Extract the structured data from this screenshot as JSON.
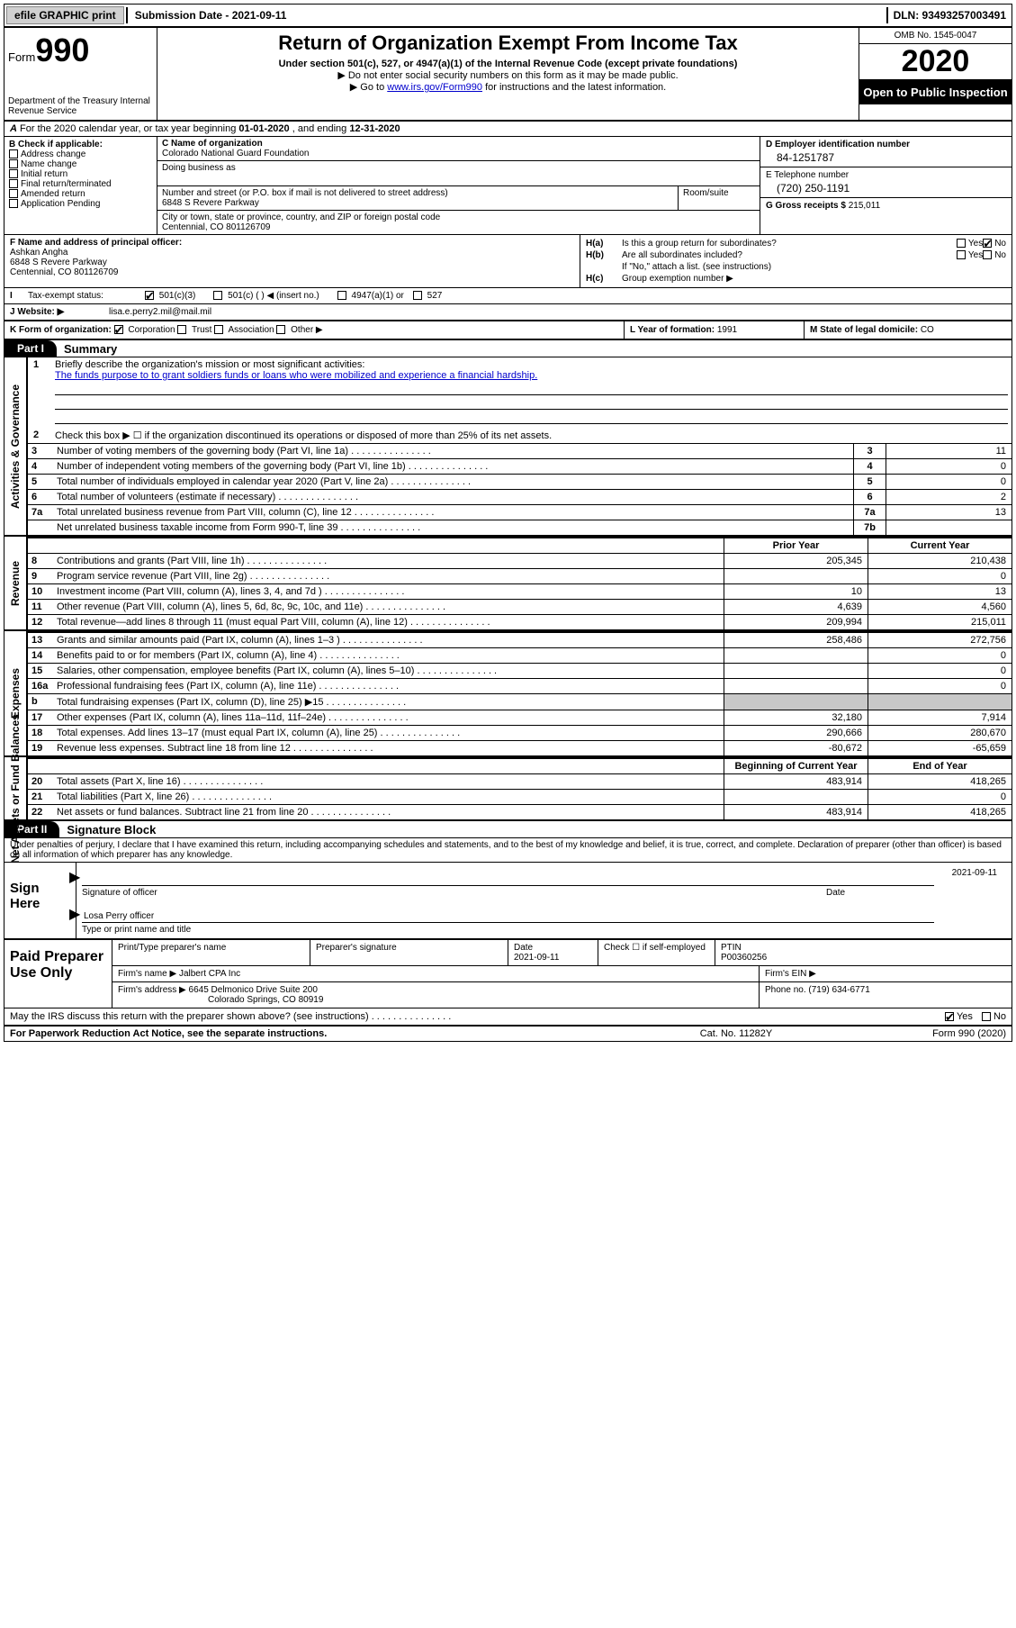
{
  "topbar": {
    "efile": "efile GRAPHIC print",
    "submission": "Submission Date - 2021-09-11",
    "dln": "DLN: 93493257003491"
  },
  "header": {
    "form_word": "Form",
    "form_num": "990",
    "dept": "Department of the Treasury\nInternal Revenue Service",
    "title": "Return of Organization Exempt From Income Tax",
    "sub1": "Under section 501(c), 527, or 4947(a)(1) of the Internal Revenue Code (except private foundations)",
    "sub2": "Do not enter social security numbers on this form as it may be made public.",
    "sub3_pre": "Go to ",
    "sub3_link": "www.irs.gov/Form990",
    "sub3_post": " for instructions and the latest information.",
    "omb": "OMB No. 1545-0047",
    "year": "2020",
    "inspect": "Open to Public Inspection"
  },
  "row_a": {
    "label": "A",
    "text_pre": "For the 2020 calendar year, or tax year beginning ",
    "begin": "01-01-2020",
    "mid": " , and ending ",
    "end": "12-31-2020"
  },
  "col_b": {
    "hd": "B Check if applicable:",
    "items": [
      "Address change",
      "Name change",
      "Initial return",
      "Final return/terminated",
      "Amended return",
      "Application Pending"
    ]
  },
  "col_c": {
    "name_lab": "C Name of organization",
    "name_val": "Colorado National Guard Foundation",
    "dba_lab": "Doing business as",
    "addr_lab": "Number and street (or P.O. box if mail is not delivered to street address)",
    "addr_val": "6848 S Revere Parkway",
    "room_lab": "Room/suite",
    "city_lab": "City or town, state or province, country, and ZIP or foreign postal code",
    "city_val": "Centennial, CO  801126709"
  },
  "col_d": {
    "ein_lab": "D Employer identification number",
    "ein_val": "84-1251787",
    "tel_lab": "E Telephone number",
    "tel_val": "(720) 250-1191",
    "gross_lab": "G Gross receipts $",
    "gross_val": "215,011"
  },
  "fh": {
    "f_lab": "F Name and address of principal officer:",
    "f_name": "Ashkan Angha",
    "f_addr1": "6848 S Revere Parkway",
    "f_addr2": "Centennial, CO  801126709",
    "ha": "Is this a group return for subordinates?",
    "hb": "Are all subordinates included?",
    "hnote": "If \"No,\" attach a list. (see instructions)",
    "hc": "Group exemption number ▶"
  },
  "row_i": {
    "lab": "Tax-exempt status:",
    "opt1": "501(c)(3)",
    "opt2": "501(c) (   ) ◀ (insert no.)",
    "opt3": "4947(a)(1) or",
    "opt4": "527"
  },
  "row_j": {
    "lab": "J   Website: ▶",
    "val": "lisa.e.perry2.mil@mail.mil"
  },
  "klm": {
    "k": "K Form of organization:",
    "k1": "Corporation",
    "k2": "Trust",
    "k3": "Association",
    "k4": "Other ▶",
    "l_lab": "L Year of formation:",
    "l_val": "1991",
    "m_lab": "M State of legal domicile:",
    "m_val": "CO"
  },
  "part1": {
    "tab": "Part I",
    "title": "Summary",
    "line1_num": "1",
    "line1_txt": "Briefly describe the organization's mission or most significant activities:",
    "mission": "The funds purpose to to grant soldiers funds or loans who were mobilized and experience a financial hardship.",
    "line2_num": "2",
    "line2_txt": "Check this box ▶ ☐ if the organization discontinued its operations or disposed of more than 25% of its net assets."
  },
  "gov_rows": [
    {
      "n": "3",
      "d": "Number of voting members of the governing body (Part VI, line 1a)",
      "b": "3",
      "v": "11"
    },
    {
      "n": "4",
      "d": "Number of independent voting members of the governing body (Part VI, line 1b)",
      "b": "4",
      "v": "0"
    },
    {
      "n": "5",
      "d": "Total number of individuals employed in calendar year 2020 (Part V, line 2a)",
      "b": "5",
      "v": "0"
    },
    {
      "n": "6",
      "d": "Total number of volunteers (estimate if necessary)",
      "b": "6",
      "v": "2"
    },
    {
      "n": "7a",
      "d": "Total unrelated business revenue from Part VIII, column (C), line 12",
      "b": "7a",
      "v": "13"
    },
    {
      "n": "",
      "d": "Net unrelated business taxable income from Form 990-T, line 39",
      "b": "7b",
      "v": ""
    }
  ],
  "rev_hdr": {
    "c1": "Prior Year",
    "c2": "Current Year"
  },
  "rev_rows": [
    {
      "n": "8",
      "d": "Contributions and grants (Part VIII, line 1h)",
      "c1": "205,345",
      "c2": "210,438"
    },
    {
      "n": "9",
      "d": "Program service revenue (Part VIII, line 2g)",
      "c1": "",
      "c2": "0"
    },
    {
      "n": "10",
      "d": "Investment income (Part VIII, column (A), lines 3, 4, and 7d )",
      "c1": "10",
      "c2": "13"
    },
    {
      "n": "11",
      "d": "Other revenue (Part VIII, column (A), lines 5, 6d, 8c, 9c, 10c, and 11e)",
      "c1": "4,639",
      "c2": "4,560"
    },
    {
      "n": "12",
      "d": "Total revenue—add lines 8 through 11 (must equal Part VIII, column (A), line 12)",
      "c1": "209,994",
      "c2": "215,011"
    }
  ],
  "exp_rows": [
    {
      "n": "13",
      "d": "Grants and similar amounts paid (Part IX, column (A), lines 1–3 )",
      "c1": "258,486",
      "c2": "272,756"
    },
    {
      "n": "14",
      "d": "Benefits paid to or for members (Part IX, column (A), line 4)",
      "c1": "",
      "c2": "0"
    },
    {
      "n": "15",
      "d": "Salaries, other compensation, employee benefits (Part IX, column (A), lines 5–10)",
      "c1": "",
      "c2": "0"
    },
    {
      "n": "16a",
      "d": "Professional fundraising fees (Part IX, column (A), line 11e)",
      "c1": "",
      "c2": "0"
    },
    {
      "n": "b",
      "d": "Total fundraising expenses (Part IX, column (D), line 25) ▶15",
      "c1": "shade",
      "c2": "shade"
    },
    {
      "n": "17",
      "d": "Other expenses (Part IX, column (A), lines 11a–11d, 11f–24e)",
      "c1": "32,180",
      "c2": "7,914"
    },
    {
      "n": "18",
      "d": "Total expenses. Add lines 13–17 (must equal Part IX, column (A), line 25)",
      "c1": "290,666",
      "c2": "280,670"
    },
    {
      "n": "19",
      "d": "Revenue less expenses. Subtract line 18 from line 12",
      "c1": "-80,672",
      "c2": "-65,659"
    }
  ],
  "net_hdr": {
    "c1": "Beginning of Current Year",
    "c2": "End of Year"
  },
  "net_rows": [
    {
      "n": "20",
      "d": "Total assets (Part X, line 16)",
      "c1": "483,914",
      "c2": "418,265"
    },
    {
      "n": "21",
      "d": "Total liabilities (Part X, line 26)",
      "c1": "",
      "c2": "0"
    },
    {
      "n": "22",
      "d": "Net assets or fund balances. Subtract line 21 from line 20",
      "c1": "483,914",
      "c2": "418,265"
    }
  ],
  "side_labels": {
    "gov": "Activities & Governance",
    "rev": "Revenue",
    "exp": "Expenses",
    "net": "Net Assets or Fund Balances"
  },
  "part2": {
    "tab": "Part II",
    "title": "Signature Block",
    "penalty": "Under penalties of perjury, I declare that I have examined this return, including accompanying schedules and statements, and to the best of my knowledge and belief, it is true, correct, and complete. Declaration of preparer (other than officer) is based on all information of which preparer has any knowledge."
  },
  "sign": {
    "left": "Sign Here",
    "sig_lab": "Signature of officer",
    "date_lab": "Date",
    "date_val": "2021-09-11",
    "name_val": "Losa Perry  officer",
    "name_lab": "Type or print name and title"
  },
  "paid": {
    "left": "Paid Preparer Use Only",
    "h1": "Print/Type preparer's name",
    "h2": "Preparer's signature",
    "h3": "Date",
    "h3v": "2021-09-11",
    "h4": "Check ☐ if self-employed",
    "h5": "PTIN",
    "h5v": "P00360256",
    "firm_lab": "Firm's name   ▶",
    "firm_val": "Jalbert CPA Inc",
    "ein_lab": "Firm's EIN ▶",
    "addr_lab": "Firm's address ▶",
    "addr_val1": "6645 Delmonico Drive Suite 200",
    "addr_val2": "Colorado Springs, CO  80919",
    "phone_lab": "Phone no.",
    "phone_val": "(719) 634-6771"
  },
  "irs_line": "May the IRS discuss this return with the preparer shown above? (see instructions)",
  "footer": {
    "l": "For Paperwork Reduction Act Notice, see the separate instructions.",
    "c": "Cat. No. 11282Y",
    "r": "Form 990 (2020)"
  }
}
